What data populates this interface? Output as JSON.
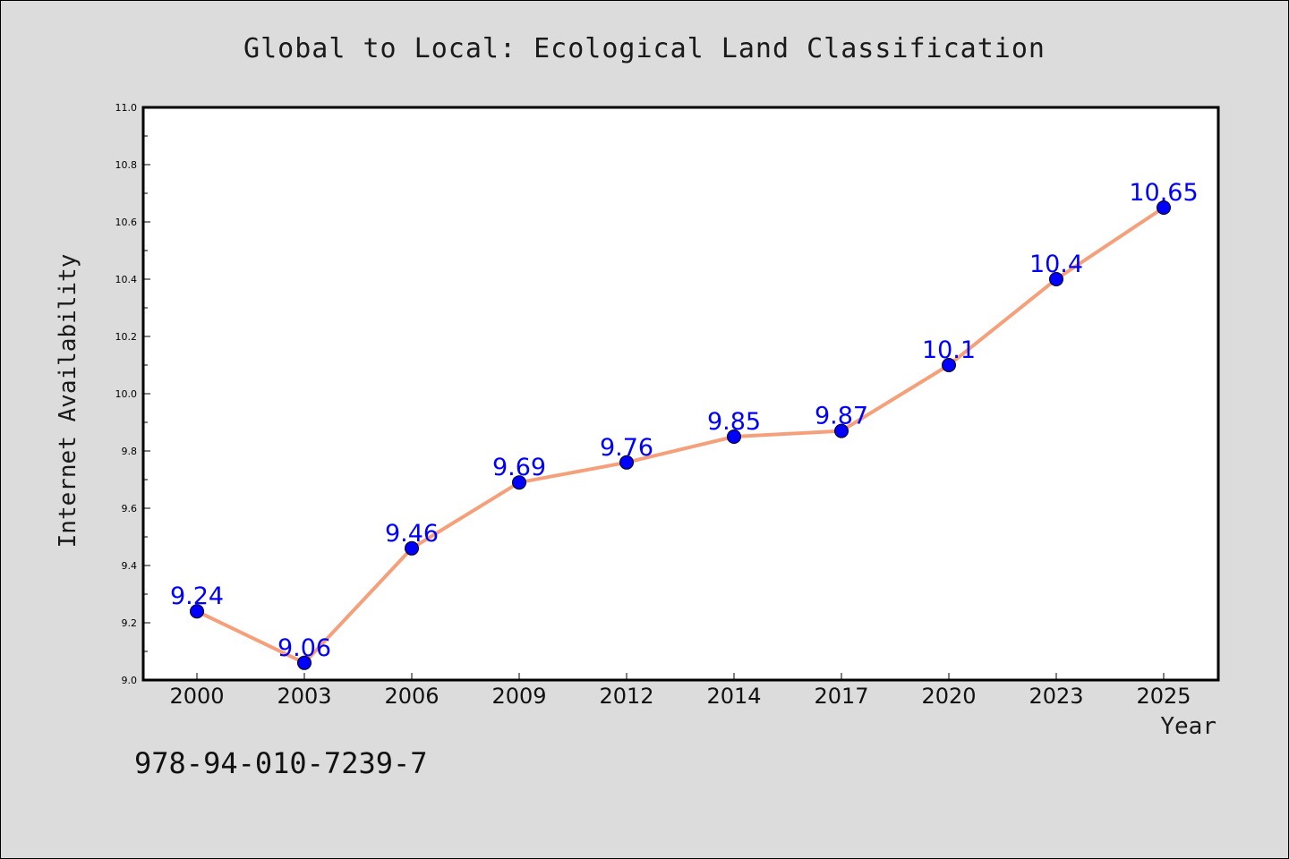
{
  "chart_data": {
    "type": "line",
    "title": "Global to Local: Ecological Land Classification",
    "xlabel": "Year",
    "ylabel": "Internet Availability",
    "categories": [
      "2000",
      "2003",
      "2006",
      "2009",
      "2012",
      "2014",
      "2017",
      "2020",
      "2023",
      "2025"
    ],
    "series": [
      {
        "values": [
          9.24,
          9.06,
          9.46,
          9.69,
          9.76,
          9.85,
          9.87,
          10.1,
          10.4,
          10.65
        ],
        "data_labels": [
          "9.24",
          "9.06",
          "9.46",
          "9.69",
          "9.76",
          "9.85",
          "9.87",
          "10.1",
          "10.4",
          "10.65"
        ],
        "line_color": "#f5a07a",
        "marker_color": "#0000ff"
      }
    ],
    "ylim": [
      9.0,
      11.0
    ],
    "yticks": [
      "9.0",
      "9.2",
      "9.4",
      "9.6",
      "9.8",
      "10.0",
      "10.2",
      "10.4",
      "10.6",
      "10.8",
      "11.0"
    ],
    "grid": false,
    "legend": "none"
  },
  "footer": {
    "isbn": "978-94-010-7239-7"
  },
  "colors": {
    "background": "#dcdcdc",
    "plot_background": "#ffffff",
    "label_color": "#0000ff"
  }
}
